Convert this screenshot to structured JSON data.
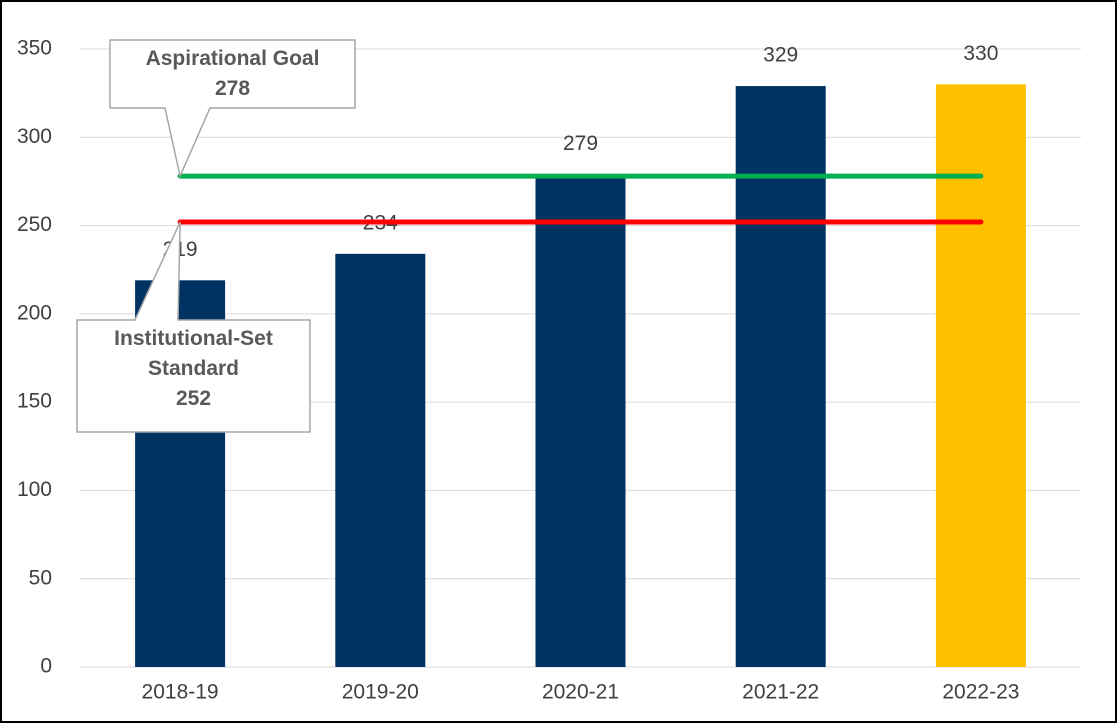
{
  "chart_data": {
    "type": "bar",
    "categories": [
      "2018-19",
      "2019-20",
      "2020-21",
      "2021-22",
      "2022-23"
    ],
    "values": [
      219,
      234,
      279,
      329,
      330
    ],
    "colors": [
      "#003262",
      "#003262",
      "#003262",
      "#003262",
      "#ffc000"
    ],
    "ylim": [
      0,
      350
    ],
    "yticks": [
      0,
      50,
      100,
      150,
      200,
      250,
      300,
      350
    ],
    "grid": true,
    "reference_lines": [
      {
        "name": "Aspirational Goal",
        "value": 278,
        "color": "#00b050"
      },
      {
        "name": "Institutional-Set Standard",
        "value": 252,
        "color": "#ff0000"
      }
    ]
  }
}
